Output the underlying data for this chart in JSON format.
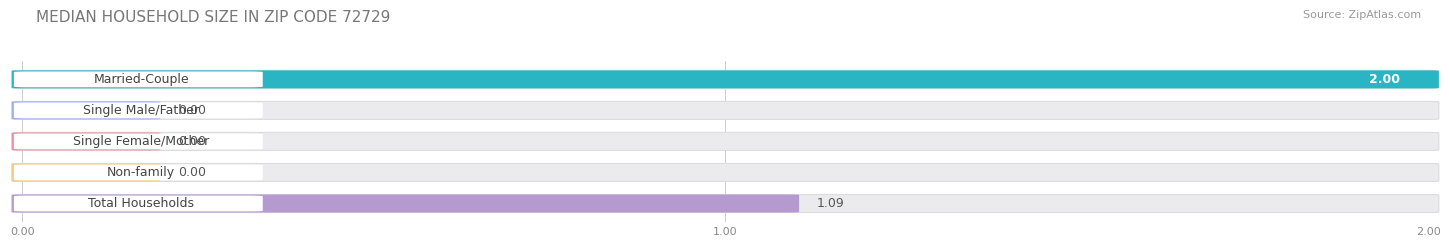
{
  "title": "MEDIAN HOUSEHOLD SIZE IN ZIP CODE 72729",
  "source": "Source: ZipAtlas.com",
  "categories": [
    "Married-Couple",
    "Single Male/Father",
    "Single Female/Mother",
    "Non-family",
    "Total Households"
  ],
  "values": [
    2.0,
    0.0,
    0.0,
    0.0,
    1.09
  ],
  "bar_colors": [
    "#2ab5c5",
    "#a0b0e8",
    "#f090a0",
    "#f5c98a",
    "#b59ad0"
  ],
  "background_color": "#ffffff",
  "bar_bg_color": "#ebebed",
  "bar_bg_edge": "#dcdce0",
  "xlim": [
    0,
    2.0
  ],
  "xticks": [
    0.0,
    1.0,
    2.0
  ],
  "xtick_labels": [
    "0.00",
    "1.00",
    "2.00"
  ],
  "title_fontsize": 11,
  "source_fontsize": 8,
  "label_fontsize": 9,
  "value_fontsize": 9
}
